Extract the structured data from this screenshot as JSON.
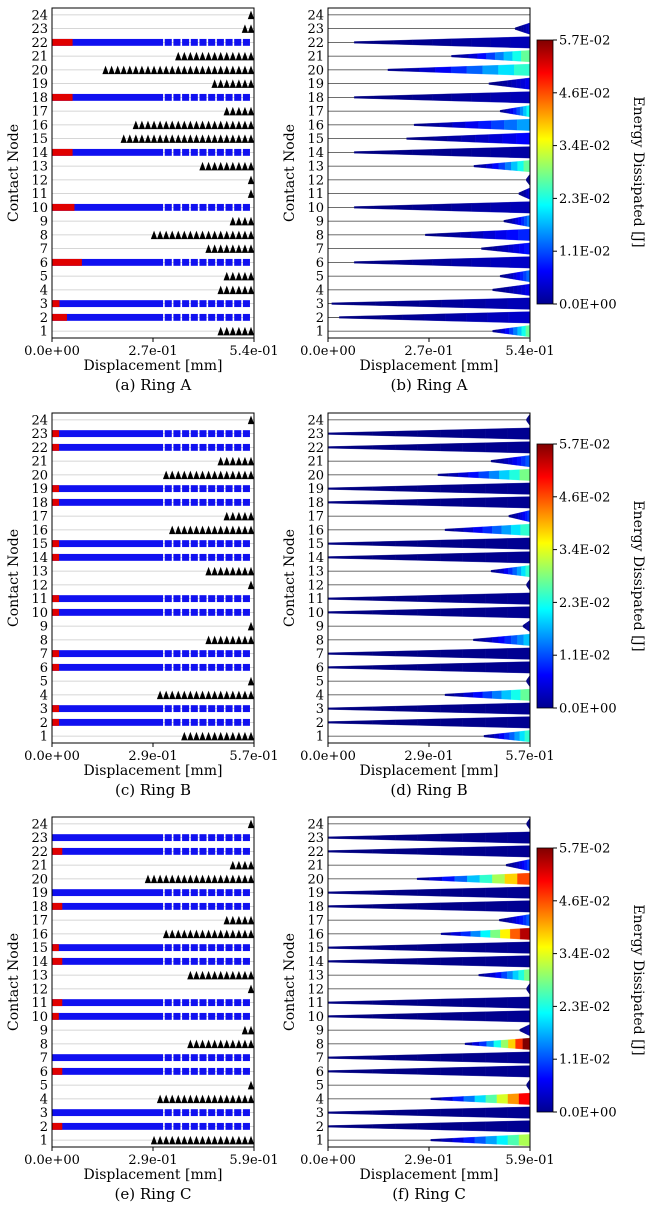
{
  "colorbar": {
    "label": "Energy Dissipated [J]",
    "ticks": [
      "0.0E+00",
      "1.1E-02",
      "2.3E-02",
      "3.4E-02",
      "4.6E-02",
      "5.7E-02"
    ],
    "max": 0.057,
    "colormap": "jet"
  },
  "colors": {
    "stick": "#e00000",
    "slip": "#1010f0",
    "marker": "#000000",
    "grid": "#c8c8c8",
    "band_low": "#00008f"
  },
  "chart_data": [
    {
      "id": "a",
      "type": "scatter",
      "caption": "(a) Ring A",
      "xlabel": "Displacement [mm]",
      "ylabel": "Contact Node",
      "xlim": [
        0,
        0.54
      ],
      "xticks": [
        0,
        0.27,
        0.54
      ],
      "xtick_labels": [
        "0.0e+00",
        "2.7e-01",
        "5.4e-01"
      ],
      "nodes": [
        1,
        2,
        3,
        4,
        5,
        6,
        7,
        8,
        9,
        10,
        11,
        12,
        13,
        14,
        15,
        16,
        17,
        18,
        19,
        20,
        21,
        22,
        23,
        24
      ],
      "bars": [
        {
          "node": 2,
          "red_end": 0.04
        },
        {
          "node": 3,
          "red_end": 0.02
        },
        {
          "node": 6,
          "red_end": 0.08
        },
        {
          "node": 10,
          "red_end": 0.06
        },
        {
          "node": 14,
          "red_end": 0.055
        },
        {
          "node": 18,
          "red_end": 0.055
        },
        {
          "node": 22,
          "red_end": 0.055
        }
      ],
      "markers": [
        {
          "node": 1,
          "start": 0.44
        },
        {
          "node": 4,
          "start": 0.44
        },
        {
          "node": 5,
          "start": 0.46
        },
        {
          "node": 7,
          "start": 0.41
        },
        {
          "node": 8,
          "start": 0.27
        },
        {
          "node": 9,
          "start": 0.48
        },
        {
          "node": 11,
          "start": 0.52
        },
        {
          "node": 12,
          "start": 0.53
        },
        {
          "node": 13,
          "start": 0.4
        },
        {
          "node": 15,
          "start": 0.18
        },
        {
          "node": 16,
          "start": 0.22
        },
        {
          "node": 17,
          "start": 0.46
        },
        {
          "node": 19,
          "start": 0.43
        },
        {
          "node": 20,
          "start": 0.14
        },
        {
          "node": 21,
          "start": 0.33
        },
        {
          "node": 23,
          "start": 0.5
        },
        {
          "node": 24,
          "start": 0.53
        }
      ]
    },
    {
      "id": "b",
      "type": "heatmap",
      "caption": "(b)  Ring A",
      "xlabel": "Displacement [mm]",
      "ylabel": "Contact Node",
      "xlim": [
        0,
        0.54
      ],
      "xticks": [
        0,
        0.27,
        0.54
      ],
      "xtick_labels": [
        "0.0e+00",
        "2.7e-01",
        "5.4e-01"
      ],
      "nodes": [
        1,
        2,
        3,
        4,
        5,
        6,
        7,
        8,
        9,
        10,
        11,
        12,
        13,
        14,
        15,
        16,
        17,
        18,
        19,
        20,
        21,
        22,
        23,
        24
      ],
      "bands": [
        {
          "node": 1,
          "start": 0.44,
          "emax": 0.027
        },
        {
          "node": 2,
          "start": 0.03,
          "emax": 0.004
        },
        {
          "node": 3,
          "start": 0.01,
          "emax": 0.003
        },
        {
          "node": 4,
          "start": 0.44,
          "emax": 0.006
        },
        {
          "node": 5,
          "start": 0.46,
          "emax": 0.013
        },
        {
          "node": 6,
          "start": 0.07,
          "emax": 0.004
        },
        {
          "node": 7,
          "start": 0.41,
          "emax": 0.008
        },
        {
          "node": 8,
          "start": 0.26,
          "emax": 0.009
        },
        {
          "node": 9,
          "start": 0.47,
          "emax": 0.014
        },
        {
          "node": 10,
          "start": 0.07,
          "emax": 0.003
        },
        {
          "node": 11,
          "start": 0.51,
          "emax": 0.005
        },
        {
          "node": 12,
          "start": 0.53,
          "emax": 0.001
        },
        {
          "node": 13,
          "start": 0.39,
          "emax": 0.027
        },
        {
          "node": 14,
          "start": 0.07,
          "emax": 0.002
        },
        {
          "node": 15,
          "start": 0.21,
          "emax": 0.007
        },
        {
          "node": 16,
          "start": 0.23,
          "emax": 0.016
        },
        {
          "node": 17,
          "start": 0.46,
          "emax": 0.022
        },
        {
          "node": 18,
          "start": 0.07,
          "emax": 0.003
        },
        {
          "node": 19,
          "start": 0.43,
          "emax": 0.006
        },
        {
          "node": 20,
          "start": 0.16,
          "emax": 0.024
        },
        {
          "node": 21,
          "start": 0.33,
          "emax": 0.027
        },
        {
          "node": 22,
          "start": 0.07,
          "emax": 0.003
        },
        {
          "node": 23,
          "start": 0.5,
          "emax": 0.004
        },
        {
          "node": 24,
          "start": 0.54,
          "emax": 0.001
        }
      ]
    },
    {
      "id": "c",
      "type": "scatter",
      "caption": "(c)  Ring B",
      "xlabel": "Displacement [mm]",
      "ylabel": "Contact Node",
      "xlim": [
        0,
        0.57
      ],
      "xticks": [
        0,
        0.285,
        0.57
      ],
      "xtick_labels": [
        "0.0e+00",
        "2.9e-01",
        "5.7e-01"
      ],
      "nodes": [
        1,
        2,
        3,
        4,
        5,
        6,
        7,
        8,
        9,
        10,
        11,
        12,
        13,
        14,
        15,
        16,
        17,
        18,
        19,
        20,
        21,
        22,
        23,
        24
      ],
      "bars": [
        {
          "node": 2,
          "red_end": 0.02
        },
        {
          "node": 3,
          "red_end": 0.02
        },
        {
          "node": 6,
          "red_end": 0.02
        },
        {
          "node": 7,
          "red_end": 0.02
        },
        {
          "node": 10,
          "red_end": 0.02
        },
        {
          "node": 11,
          "red_end": 0.02
        },
        {
          "node": 14,
          "red_end": 0.02
        },
        {
          "node": 15,
          "red_end": 0.02
        },
        {
          "node": 18,
          "red_end": 0.02
        },
        {
          "node": 19,
          "red_end": 0.02
        },
        {
          "node": 22,
          "red_end": 0.02
        },
        {
          "node": 23,
          "red_end": 0.02
        }
      ],
      "markers": [
        {
          "node": 1,
          "start": 0.36
        },
        {
          "node": 4,
          "start": 0.29
        },
        {
          "node": 5,
          "start": 0.56
        },
        {
          "node": 8,
          "start": 0.43
        },
        {
          "node": 9,
          "start": 0.56
        },
        {
          "node": 12,
          "start": 0.56
        },
        {
          "node": 13,
          "start": 0.43
        },
        {
          "node": 16,
          "start": 0.33
        },
        {
          "node": 17,
          "start": 0.49
        },
        {
          "node": 20,
          "start": 0.31
        },
        {
          "node": 21,
          "start": 0.46
        },
        {
          "node": 24,
          "start": 0.56
        }
      ]
    },
    {
      "id": "d",
      "type": "heatmap",
      "caption": "(d)  Ring B",
      "xlabel": "Displacement [mm]",
      "ylabel": "Contact Node",
      "xlim": [
        0,
        0.57
      ],
      "xticks": [
        0,
        0.285,
        0.57
      ],
      "xtick_labels": [
        "0.0e+00",
        "2.9e-01",
        "5.7e-01"
      ],
      "nodes": [
        1,
        2,
        3,
        4,
        5,
        6,
        7,
        8,
        9,
        10,
        11,
        12,
        13,
        14,
        15,
        16,
        17,
        18,
        19,
        20,
        21,
        22,
        23,
        24
      ],
      "bands": [
        {
          "node": 1,
          "start": 0.44,
          "emax": 0.024
        },
        {
          "node": 2,
          "start": 0.0,
          "emax": 0.001
        },
        {
          "node": 3,
          "start": 0.0,
          "emax": 0.001
        },
        {
          "node": 4,
          "start": 0.33,
          "emax": 0.027
        },
        {
          "node": 5,
          "start": 0.56,
          "emax": 0.001
        },
        {
          "node": 6,
          "start": 0.0,
          "emax": 0.001
        },
        {
          "node": 7,
          "start": 0.0,
          "emax": 0.001
        },
        {
          "node": 8,
          "start": 0.41,
          "emax": 0.018
        },
        {
          "node": 9,
          "start": 0.55,
          "emax": 0.002
        },
        {
          "node": 10,
          "start": 0.0,
          "emax": 0.001
        },
        {
          "node": 11,
          "start": 0.0,
          "emax": 0.001
        },
        {
          "node": 12,
          "start": 0.56,
          "emax": 0.001
        },
        {
          "node": 13,
          "start": 0.46,
          "emax": 0.024
        },
        {
          "node": 14,
          "start": 0.0,
          "emax": 0.001
        },
        {
          "node": 15,
          "start": 0.0,
          "emax": 0.001
        },
        {
          "node": 16,
          "start": 0.33,
          "emax": 0.024
        },
        {
          "node": 17,
          "start": 0.51,
          "emax": 0.01
        },
        {
          "node": 18,
          "start": 0.0,
          "emax": 0.001
        },
        {
          "node": 19,
          "start": 0.0,
          "emax": 0.001
        },
        {
          "node": 20,
          "start": 0.31,
          "emax": 0.028
        },
        {
          "node": 21,
          "start": 0.46,
          "emax": 0.012
        },
        {
          "node": 22,
          "start": 0.0,
          "emax": 0.001
        },
        {
          "node": 23,
          "start": 0.0,
          "emax": 0.001
        },
        {
          "node": 24,
          "start": 0.56,
          "emax": 0.001
        }
      ]
    },
    {
      "id": "e",
      "type": "scatter",
      "caption": "(e)  Ring C",
      "xlabel": "Displacement [mm]",
      "ylabel": "Contact Node",
      "xlim": [
        0,
        0.59
      ],
      "xticks": [
        0,
        0.295,
        0.59
      ],
      "xtick_labels": [
        "0.0e+00",
        "2.9e-01",
        "5.9e-01"
      ],
      "nodes": [
        1,
        2,
        3,
        4,
        5,
        6,
        7,
        8,
        9,
        10,
        11,
        12,
        13,
        14,
        15,
        16,
        17,
        18,
        19,
        20,
        21,
        22,
        23,
        24
      ],
      "bars": [
        {
          "node": 2,
          "red_end": 0.03
        },
        {
          "node": 3,
          "red_end": 0.0
        },
        {
          "node": 6,
          "red_end": 0.03
        },
        {
          "node": 7,
          "red_end": 0.0
        },
        {
          "node": 10,
          "red_end": 0.02
        },
        {
          "node": 11,
          "red_end": 0.03
        },
        {
          "node": 14,
          "red_end": 0.03
        },
        {
          "node": 15,
          "red_end": 0.02
        },
        {
          "node": 18,
          "red_end": 0.03
        },
        {
          "node": 19,
          "red_end": 0.0
        },
        {
          "node": 22,
          "red_end": 0.03
        },
        {
          "node": 23,
          "red_end": 0.0
        }
      ],
      "markers": [
        {
          "node": 1,
          "start": 0.29
        },
        {
          "node": 4,
          "start": 0.31
        },
        {
          "node": 5,
          "start": 0.58
        },
        {
          "node": 8,
          "start": 0.4
        },
        {
          "node": 9,
          "start": 0.55
        },
        {
          "node": 12,
          "start": 0.58
        },
        {
          "node": 13,
          "start": 0.4
        },
        {
          "node": 16,
          "start": 0.32
        },
        {
          "node": 17,
          "start": 0.5
        },
        {
          "node": 20,
          "start": 0.27
        },
        {
          "node": 21,
          "start": 0.52
        },
        {
          "node": 24,
          "start": 0.58
        }
      ]
    },
    {
      "id": "f",
      "type": "heatmap",
      "caption": "(f)  Ring C",
      "xlabel": "Displacement [mm]",
      "ylabel": "Contact Node",
      "xlim": [
        0,
        0.59
      ],
      "xticks": [
        0,
        0.295,
        0.59
      ],
      "xtick_labels": [
        "0.0e+00",
        "2.9e-01",
        "5.9e-01"
      ],
      "nodes": [
        1,
        2,
        3,
        4,
        5,
        6,
        7,
        8,
        9,
        10,
        11,
        12,
        13,
        14,
        15,
        16,
        17,
        18,
        19,
        20,
        21,
        22,
        23,
        24
      ],
      "bands": [
        {
          "node": 1,
          "start": 0.3,
          "emax": 0.031
        },
        {
          "node": 2,
          "start": 0.0,
          "emax": 0.001
        },
        {
          "node": 3,
          "start": 0.0,
          "emax": 0.001
        },
        {
          "node": 4,
          "start": 0.3,
          "emax": 0.05
        },
        {
          "node": 5,
          "start": 0.58,
          "emax": 0.001
        },
        {
          "node": 6,
          "start": 0.0,
          "emax": 0.001
        },
        {
          "node": 7,
          "start": 0.0,
          "emax": 0.001
        },
        {
          "node": 8,
          "start": 0.4,
          "emax": 0.057
        },
        {
          "node": 9,
          "start": 0.56,
          "emax": 0.003
        },
        {
          "node": 10,
          "start": 0.0,
          "emax": 0.001
        },
        {
          "node": 11,
          "start": 0.0,
          "emax": 0.001
        },
        {
          "node": 12,
          "start": 0.58,
          "emax": 0.001
        },
        {
          "node": 13,
          "start": 0.44,
          "emax": 0.028
        },
        {
          "node": 14,
          "start": 0.0,
          "emax": 0.001
        },
        {
          "node": 15,
          "start": 0.0,
          "emax": 0.001
        },
        {
          "node": 16,
          "start": 0.33,
          "emax": 0.054
        },
        {
          "node": 17,
          "start": 0.5,
          "emax": 0.012
        },
        {
          "node": 18,
          "start": 0.0,
          "emax": 0.001
        },
        {
          "node": 19,
          "start": 0.0,
          "emax": 0.001
        },
        {
          "node": 20,
          "start": 0.26,
          "emax": 0.046
        },
        {
          "node": 21,
          "start": 0.52,
          "emax": 0.01
        },
        {
          "node": 22,
          "start": 0.0,
          "emax": 0.001
        },
        {
          "node": 23,
          "start": 0.0,
          "emax": 0.001
        },
        {
          "node": 24,
          "start": 0.58,
          "emax": 0.001
        }
      ]
    }
  ]
}
